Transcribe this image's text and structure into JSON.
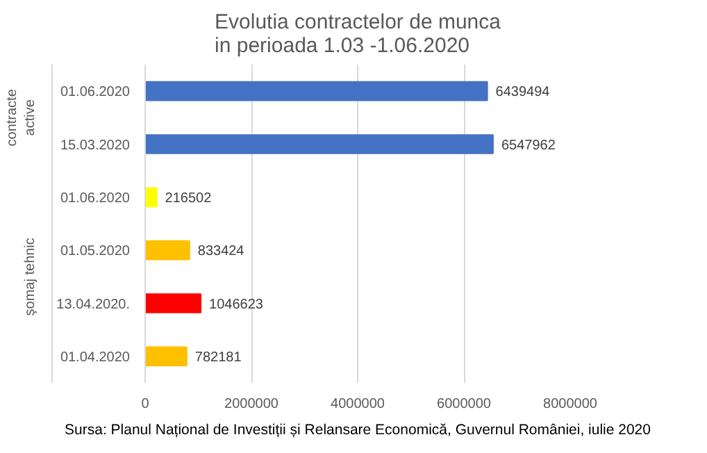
{
  "chart_data": {
    "type": "bar",
    "orientation": "horizontal",
    "title": "Evolutia contractelor de munca\nin perioada 1.03 -1.06.2020",
    "categories": [
      "01.06.2020",
      "15.03.2020",
      "01.06.2020",
      "01.05.2020",
      "13.04.2020.",
      "01.04.2020"
    ],
    "values": [
      6439494,
      6547962,
      216502,
      833424,
      1046623,
      782181
    ],
    "colors": [
      "#4472c4",
      "#4472c4",
      "#ffff00",
      "#ffc000",
      "#ff0000",
      "#ffc000"
    ],
    "xlim": [
      0,
      8000000
    ],
    "xticks": [
      0,
      2000000,
      4000000,
      6000000,
      8000000
    ],
    "grid": "x",
    "data_labels": true,
    "annotations": [
      "contracte\nactive",
      "şomaj tehnic",
      "Sursa: Planul Național de Investiții și Relansare Economică, Guvernul României, iulie 2020"
    ]
  }
}
